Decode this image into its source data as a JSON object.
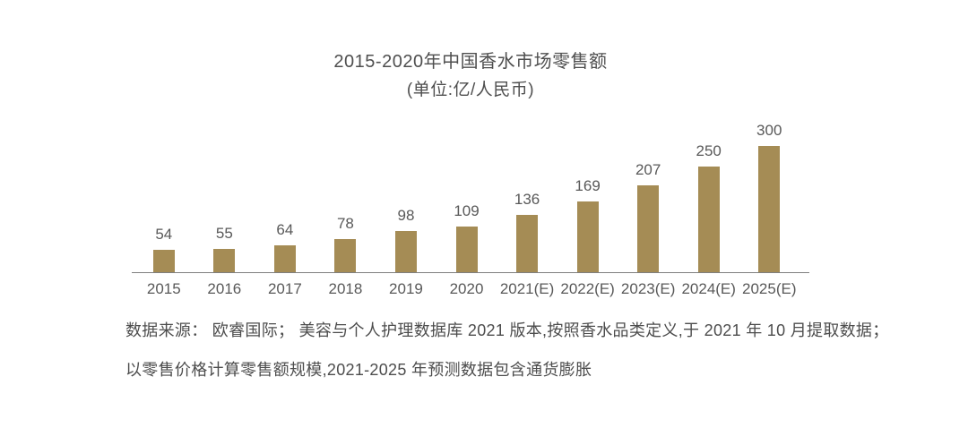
{
  "chart_data": {
    "type": "bar",
    "title": "2015-2020年中国香水市场零售额",
    "subtitle": "(单位:亿/人民币)",
    "categories": [
      "2015",
      "2016",
      "2017",
      "2018",
      "2019",
      "2020",
      "2021(E)",
      "2022(E)",
      "2023(E)",
      "2024(E)",
      "2025(E)"
    ],
    "values": [
      54,
      55,
      64,
      78,
      98,
      109,
      136,
      169,
      207,
      250,
      300
    ],
    "ylim": [
      0,
      320
    ],
    "grid": false,
    "legend": false,
    "value_labels_shown": true,
    "bar_color": "#a58c55",
    "value_label_color": "#595959",
    "axis_label_color": "#595959",
    "axis_line_color": "#7f7f7f"
  },
  "source_note": {
    "line1": "数据来源： 欧睿国际； 美容与个人护理数据库 2021 版本,按照香水品类定义,于 2021 年 10 月提取数据；",
    "line2": "以零售价格计算零售额规模,2021-2025 年预测数据包含通货膨胀"
  }
}
